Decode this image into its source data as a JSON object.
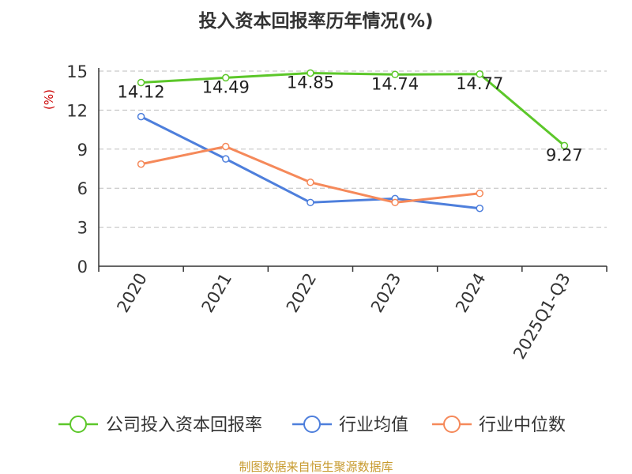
{
  "chart_data": {
    "type": "line",
    "title": "投入资本回报率历年情况(%)",
    "ylabel": "(%)",
    "categories": [
      "2020",
      "2021",
      "2022",
      "2023",
      "2024",
      "2025Q1-Q3"
    ],
    "yticks": [
      "0",
      "3",
      "6",
      "9",
      "12",
      "15"
    ],
    "ylim": [
      0,
      15
    ],
    "grid": true,
    "legend_position": "bottom",
    "series": [
      {
        "name": "公司投入资本回报率",
        "color": "#5cc72a",
        "values": [
          14.12,
          14.49,
          14.85,
          14.74,
          14.77,
          9.27
        ],
        "labels": [
          "14.12",
          "14.49",
          "14.85",
          "14.74",
          "14.77",
          "9.27"
        ]
      },
      {
        "name": "行业均值",
        "color": "#4e7fdc",
        "values": [
          11.5,
          8.25,
          4.9,
          5.2,
          4.45,
          null
        ]
      },
      {
        "name": "行业中位数",
        "color": "#f5895a",
        "values": [
          7.85,
          9.2,
          6.45,
          4.9,
          5.6,
          null
        ]
      }
    ]
  },
  "footer": {
    "source": "制图数据来自恒生聚源数据库"
  }
}
